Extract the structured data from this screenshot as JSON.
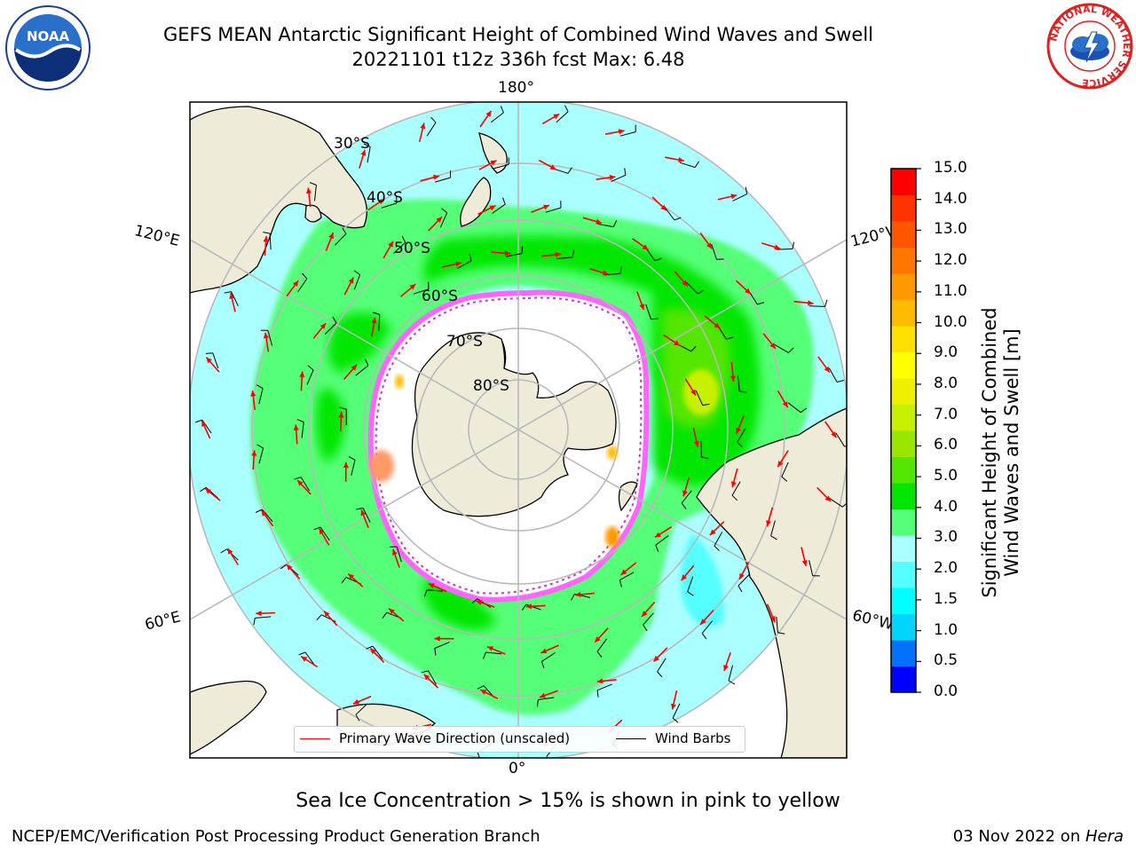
{
  "title": {
    "line1": "GEFS MEAN Antarctic Significant Height of Combined Wind Waves and Swell",
    "line2": "20221101 t12z 336h fcst   Max: 6.48"
  },
  "map": {
    "projection": "south-polar-stereographic",
    "lon_labels": {
      "top": "180°",
      "bottom": "0°",
      "upper_left": "120°E",
      "upper_right": "120°W",
      "lower_left": "60°E",
      "lower_right": "60°W"
    },
    "lat_labels": [
      "30°S",
      "40°S",
      "50°S",
      "60°S",
      "70°S",
      "80°S"
    ],
    "colors": {
      "ocean_calm": "#aaffff",
      "ocean_moderate": "#55ff77",
      "ocean_high": "#00e600",
      "ocean_peak": "#c7f000",
      "sea_ice_low": "#ff66ff",
      "sea_ice_high": "#ff9900",
      "land": "#eeecd9",
      "wave_arrow": "#ff0000",
      "wind_barb": "#000000",
      "graticule": "#b8b8b8"
    }
  },
  "legend": {
    "wave_direction": "Primary Wave Direction (unscaled)",
    "wind_barbs": "Wind Barbs"
  },
  "colorbar": {
    "title_line1": "Significant Height of Combined",
    "title_line2": "Wind Waves and Swell [m]",
    "ticks": [
      "15.0",
      "14.0",
      "13.0",
      "12.0",
      "11.0",
      "10.0",
      "9.0",
      "8.0",
      "7.0",
      "6.0",
      "5.0",
      "4.0",
      "3.0",
      "2.0",
      "1.5",
      "1.0",
      "0.5",
      "0.0"
    ],
    "colors": [
      "#0000ff",
      "#0070ff",
      "#00d5ff",
      "#00ffff",
      "#55ffff",
      "#aaffff",
      "#55ff77",
      "#00e600",
      "#55e600",
      "#99e600",
      "#c7f000",
      "#eef000",
      "#ffff00",
      "#ffe000",
      "#ffbb00",
      "#ff9900",
      "#ff7700",
      "#ff5500",
      "#ff3300",
      "#ff0000"
    ]
  },
  "caption": "Sea Ice Concentration > 15% is shown in pink to yellow",
  "footer": {
    "left": "NCEP/EMC/Verification Post Processing Product Generation Branch",
    "date": "03 Nov 2022 on ",
    "host": "Hera"
  },
  "logos": {
    "noaa": "NOAA",
    "nws": "NATIONAL WEATHER SERVICE"
  }
}
